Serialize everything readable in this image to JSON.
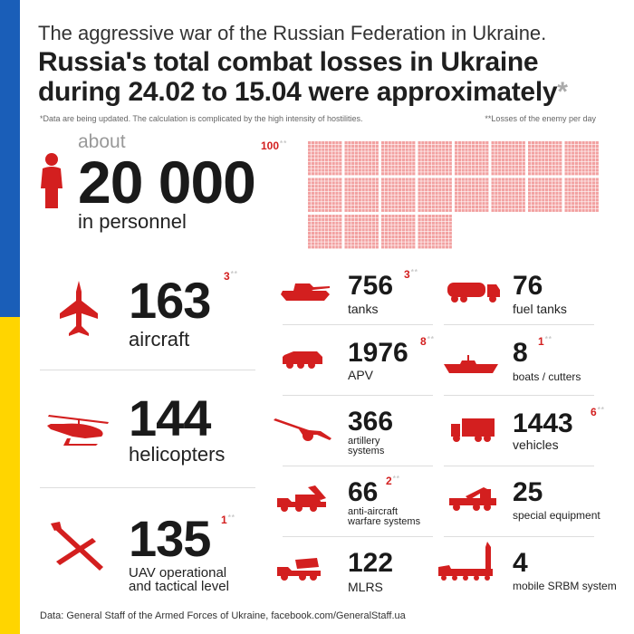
{
  "header": {
    "subtitle": "The aggressive war of the Russian Federation in Ukraine.",
    "title_line1": "Russia's total combat losses in Ukraine",
    "title_line2": "during 24.02 to 15.04 were approximately",
    "title_asterisk": "*",
    "note_left": "*Data are being updated. The calculation is complicated by the high intensity of hostilities.",
    "note_right": "**Losses of the enemy per day"
  },
  "personnel": {
    "prefix": "about",
    "value": "20 000",
    "label": "in personnel",
    "per_day": "100",
    "per_day_marker": "**",
    "icon": "person-icon"
  },
  "personnel_grid": {
    "full_rows": 2,
    "blocks_per_row": 8,
    "last_row_blocks": 4,
    "cells_per_block_x": 10,
    "cells_per_block_y": 10
  },
  "large_items": [
    {
      "value": "163",
      "label": "aircraft",
      "per_day": "3",
      "marker": "**",
      "icon": "fighter-jet-icon"
    },
    {
      "value": "144",
      "label": "helicopters",
      "per_day": "",
      "marker": "",
      "icon": "helicopter-icon"
    },
    {
      "value": "135",
      "label_line1": "UAV operational",
      "label_line2": "and tactical level",
      "per_day": "1",
      "marker": "**",
      "icon": "drone-icon"
    }
  ],
  "middle_items": [
    {
      "value": "756",
      "label": "tanks",
      "per_day": "3",
      "marker": "**",
      "icon": "tank-icon"
    },
    {
      "value": "1976",
      "label": "APV",
      "per_day": "8",
      "marker": "**",
      "icon": "apv-icon"
    },
    {
      "value": "366",
      "label_line1": "artillery",
      "label_line2": "systems",
      "per_day": "",
      "marker": "",
      "icon": "artillery-icon"
    },
    {
      "value": "66",
      "label_line1": "anti-aircraft",
      "label_line2": "warfare systems",
      "per_day": "2",
      "marker": "**",
      "icon": "anti-aircraft-icon"
    },
    {
      "value": "122",
      "label": "MLRS",
      "per_day": "",
      "marker": "",
      "icon": "mlrs-icon"
    }
  ],
  "right_items": [
    {
      "value": "76",
      "label": "fuel tanks",
      "per_day": "",
      "marker": "",
      "icon": "fuel-truck-icon"
    },
    {
      "value": "8",
      "label": "boats / cutters",
      "per_day": "1",
      "marker": "**",
      "icon": "boat-icon"
    },
    {
      "value": "1443",
      "label": "vehicles",
      "per_day": "6",
      "marker": "**",
      "icon": "truck-icon"
    },
    {
      "value": "25",
      "label": "special equipment",
      "per_day": "",
      "marker": "",
      "icon": "crane-truck-icon"
    },
    {
      "value": "4",
      "label": "mobile SRBM system",
      "per_day": "",
      "marker": "",
      "icon": "missile-launcher-icon"
    }
  ],
  "footer": {
    "source": "Data: General Staff of the Armed Forces of Ukraine, facebook.com/GeneralStaff.ua"
  },
  "colors": {
    "accent": "#d31f1f",
    "flag_blue": "#1a5eb8",
    "flag_yellow": "#ffd500",
    "grid_cell": "#f2a1a1"
  }
}
